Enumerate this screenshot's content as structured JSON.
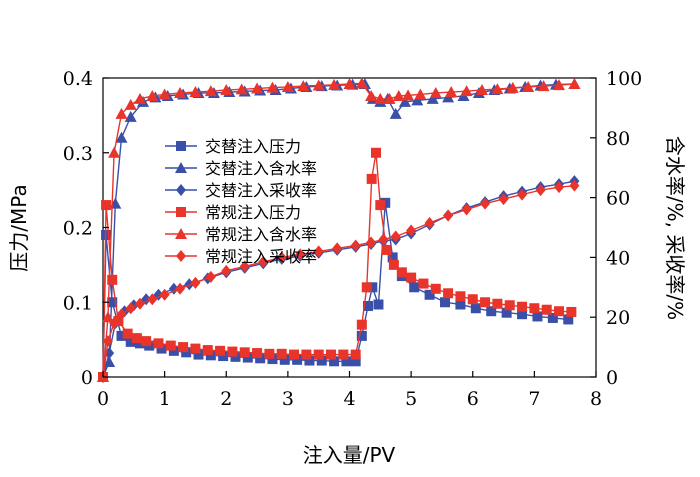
{
  "chart_data": {
    "type": "line",
    "xlabel": "注入量/PV",
    "ylabel": "压力/MPa",
    "y2label": "含水率/%, 采收率/%",
    "xlim": [
      0,
      8
    ],
    "ylim": [
      0,
      0.4
    ],
    "y2lim": [
      0,
      100
    ],
    "xticks": [
      "0",
      "1",
      "2",
      "3",
      "4",
      "5",
      "6",
      "7",
      "8"
    ],
    "yticks": [
      "0",
      "0.1",
      "0.2",
      "0.3",
      "0.4"
    ],
    "y2ticks": [
      "0",
      "20",
      "40",
      "60",
      "80",
      "100"
    ],
    "legend_position": "upper-left",
    "series": [
      {
        "name": "交替注入压力",
        "axis": "left",
        "color": "#3a4fa8",
        "marker": "square",
        "x": [
          0,
          0.05,
          0.15,
          0.3,
          0.45,
          0.6,
          0.75,
          0.95,
          1.15,
          1.35,
          1.55,
          1.75,
          1.95,
          2.15,
          2.35,
          2.55,
          2.75,
          2.95,
          3.15,
          3.35,
          3.55,
          3.75,
          3.95,
          4.1,
          4.2,
          4.3,
          4.37,
          4.47,
          4.58,
          4.7,
          4.85,
          5.05,
          5.3,
          5.55,
          5.8,
          6.05,
          6.3,
          6.55,
          6.8,
          7.05,
          7.3,
          7.55
        ],
        "y": [
          0,
          0.19,
          0.1,
          0.055,
          0.047,
          0.045,
          0.042,
          0.038,
          0.035,
          0.033,
          0.03,
          0.029,
          0.028,
          0.027,
          0.026,
          0.025,
          0.024,
          0.023,
          0.023,
          0.022,
          0.022,
          0.021,
          0.021,
          0.021,
          0.055,
          0.095,
          0.12,
          0.097,
          0.233,
          0.16,
          0.135,
          0.12,
          0.11,
          0.1,
          0.097,
          0.092,
          0.088,
          0.086,
          0.084,
          0.081,
          0.079,
          0.077
        ]
      },
      {
        "name": "交替注入含水率",
        "axis": "right",
        "color": "#3a4fa8",
        "marker": "triangle",
        "x": [
          0,
          0.1,
          0.2,
          0.3,
          0.45,
          0.65,
          0.85,
          1.05,
          1.3,
          1.55,
          1.8,
          2.05,
          2.3,
          2.55,
          2.8,
          3.05,
          3.3,
          3.55,
          3.8,
          4.05,
          4.25,
          4.38,
          4.5,
          4.62,
          4.75,
          4.9,
          5.1,
          5.35,
          5.6,
          5.85,
          6.1,
          6.35,
          6.6,
          6.85,
          7.1,
          7.35,
          7.65
        ],
        "y": [
          0,
          5,
          58,
          80,
          87,
          92,
          93.5,
          94,
          94.5,
          95,
          95,
          95.3,
          95.5,
          95.8,
          96,
          96.5,
          97,
          97.3,
          97.5,
          97.8,
          98,
          93,
          92,
          93,
          88,
          92,
          92.5,
          93,
          93.5,
          94,
          95,
          96,
          96.5,
          97,
          97.5,
          97.8,
          98
        ]
      },
      {
        "name": "交替注入采收率",
        "axis": "right",
        "color": "#3a4fa8",
        "marker": "diamond",
        "x": [
          0,
          0.1,
          0.2,
          0.35,
          0.5,
          0.7,
          0.9,
          1.15,
          1.4,
          1.7,
          2.0,
          2.3,
          2.6,
          2.9,
          3.2,
          3.5,
          3.8,
          4.1,
          4.35,
          4.55,
          4.75,
          5.0,
          5.3,
          5.6,
          5.9,
          6.2,
          6.5,
          6.8,
          7.1,
          7.4,
          7.65
        ],
        "y": [
          0,
          8,
          18,
          22,
          24,
          26,
          27.5,
          29.5,
          31,
          33,
          35,
          36.5,
          38,
          39.5,
          40.5,
          41.5,
          42.5,
          43.5,
          44.5,
          45.5,
          46,
          48,
          51,
          54,
          56.5,
          58.5,
          60.5,
          62,
          63.5,
          64.5,
          65.5
        ]
      },
      {
        "name": "常规注入压力",
        "axis": "left",
        "color": "#e8342a",
        "marker": "square",
        "x": [
          0,
          0.05,
          0.15,
          0.25,
          0.4,
          0.55,
          0.7,
          0.9,
          1.1,
          1.3,
          1.5,
          1.7,
          1.9,
          2.1,
          2.3,
          2.5,
          2.7,
          2.9,
          3.1,
          3.3,
          3.5,
          3.7,
          3.9,
          4.1,
          4.2,
          4.28,
          4.36,
          4.43,
          4.5,
          4.6,
          4.72,
          4.85,
          5.0,
          5.2,
          5.4,
          5.6,
          5.8,
          6.0,
          6.2,
          6.4,
          6.6,
          6.8,
          7.0,
          7.2,
          7.4,
          7.6
        ],
        "y": [
          0,
          0.23,
          0.13,
          0.075,
          0.058,
          0.052,
          0.048,
          0.045,
          0.042,
          0.04,
          0.038,
          0.036,
          0.035,
          0.034,
          0.033,
          0.032,
          0.031,
          0.031,
          0.03,
          0.03,
          0.03,
          0.03,
          0.03,
          0.03,
          0.07,
          0.12,
          0.265,
          0.3,
          0.23,
          0.17,
          0.15,
          0.14,
          0.133,
          0.125,
          0.118,
          0.112,
          0.108,
          0.104,
          0.1,
          0.098,
          0.096,
          0.094,
          0.092,
          0.09,
          0.088,
          0.087
        ]
      },
      {
        "name": "常规注入含水率",
        "axis": "right",
        "color": "#e8342a",
        "marker": "triangle",
        "x": [
          0,
          0.08,
          0.18,
          0.3,
          0.45,
          0.6,
          0.8,
          1.0,
          1.25,
          1.5,
          1.75,
          2.0,
          2.25,
          2.5,
          2.75,
          3.0,
          3.25,
          3.5,
          3.75,
          4.0,
          4.2,
          4.35,
          4.5,
          4.65,
          4.8,
          4.95,
          5.15,
          5.4,
          5.65,
          5.9,
          6.15,
          6.4,
          6.65,
          6.9,
          7.15,
          7.4,
          7.65
        ],
        "y": [
          0,
          20,
          75,
          88,
          91,
          93,
          94,
          94.5,
          95,
          95.3,
          95.6,
          96,
          96.2,
          96.5,
          96.8,
          97,
          97.3,
          97.5,
          97.7,
          98,
          98.2,
          94,
          93,
          93,
          94,
          94.2,
          94.5,
          95,
          95.3,
          95.6,
          96,
          96.3,
          96.7,
          97,
          97.3,
          97.6,
          98
        ]
      },
      {
        "name": "常规注入采收率",
        "axis": "right",
        "color": "#e8342a",
        "marker": "diamond",
        "x": [
          0,
          0.08,
          0.18,
          0.3,
          0.45,
          0.6,
          0.8,
          1.0,
          1.25,
          1.5,
          1.75,
          2.0,
          2.3,
          2.6,
          2.9,
          3.2,
          3.5,
          3.8,
          4.1,
          4.35,
          4.55,
          4.75,
          5.0,
          5.3,
          5.6,
          5.9,
          6.2,
          6.5,
          6.8,
          7.1,
          7.4,
          7.65
        ],
        "y": [
          0,
          12,
          18,
          21,
          23,
          24.5,
          26,
          27.5,
          29.5,
          31.5,
          33.5,
          35.5,
          37,
          38.5,
          40,
          41,
          42,
          43,
          44,
          45,
          46,
          47,
          49,
          51.5,
          54,
          56,
          58,
          59.5,
          61,
          62.5,
          63.5,
          64
        ]
      }
    ]
  }
}
